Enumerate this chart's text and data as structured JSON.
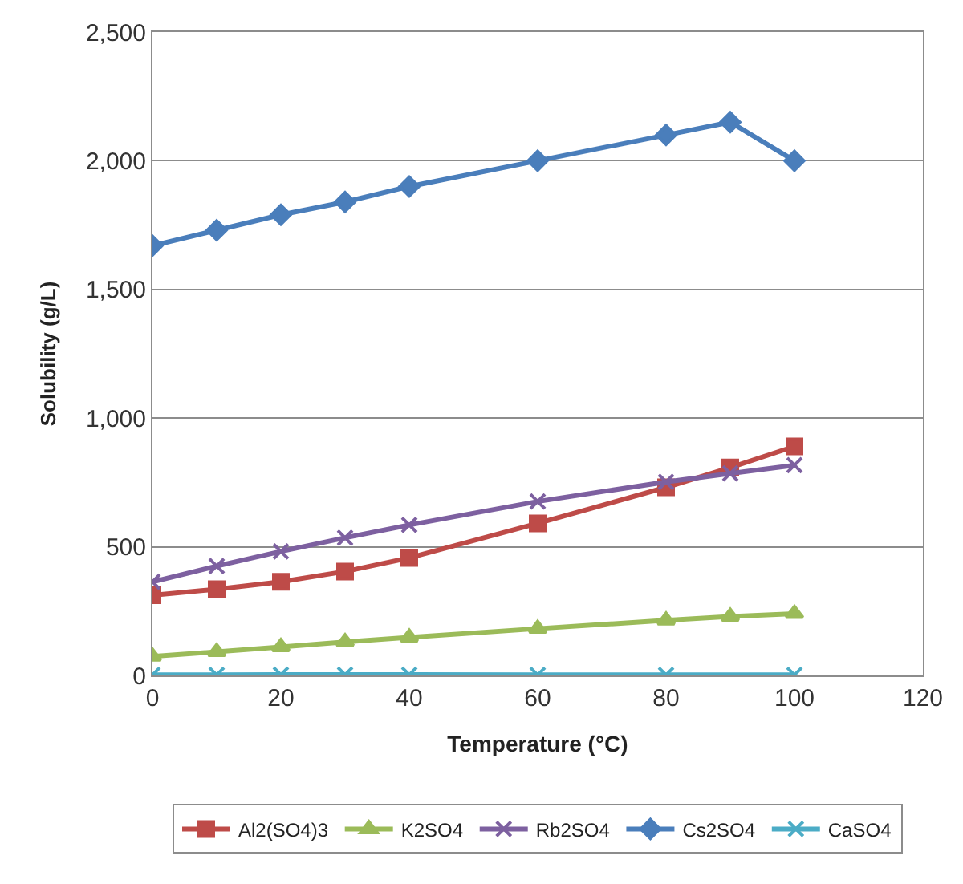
{
  "chart_data": {
    "type": "line",
    "xlabel": "Temperature (°C)",
    "ylabel": "Solubility (g/L)",
    "xlim": [
      0,
      120
    ],
    "xticks": [
      0,
      20,
      40,
      60,
      80,
      100,
      120
    ],
    "ylim": [
      0,
      2500
    ],
    "yticks": [
      {
        "value": 0,
        "label": "0"
      },
      {
        "value": 500,
        "label": "500"
      },
      {
        "value": 1000,
        "label": "1,000"
      },
      {
        "value": 1500,
        "label": "1,500"
      },
      {
        "value": 2000,
        "label": "2,000"
      },
      {
        "value": 2500,
        "label": "2,500"
      }
    ],
    "grid": "y",
    "legend": "bottom",
    "line_style": "solid",
    "series": [
      {
        "name": "Al2(SO4)3",
        "color": "#be4b48",
        "marker": "square",
        "x": [
          0,
          10,
          20,
          30,
          40,
          60,
          80,
          90,
          100
        ],
        "values": [
          312,
          335,
          364,
          404,
          457,
          591,
          731,
          808,
          890
        ]
      },
      {
        "name": "K2SO4",
        "color": "#9bbb59",
        "marker": "triangle",
        "x": [
          0,
          10,
          20,
          30,
          40,
          60,
          80,
          90,
          100
        ],
        "values": [
          74,
          92,
          111,
          130,
          148,
          182,
          214,
          229,
          240
        ]
      },
      {
        "name": "Rb2SO4",
        "color": "#7d60a0",
        "marker": "cross",
        "x": [
          0,
          10,
          20,
          30,
          40,
          60,
          80,
          90,
          100
        ],
        "values": [
          364,
          425,
          482,
          535,
          585,
          676,
          752,
          785,
          817
        ]
      },
      {
        "name": "Cs2SO4",
        "color": "#4a7ebb",
        "marker": "diamond",
        "x": [
          0,
          10,
          20,
          30,
          40,
          60,
          80,
          90,
          100
        ],
        "values": [
          1670,
          1730,
          1790,
          1840,
          1900,
          2000,
          2100,
          2150,
          2000
        ]
      },
      {
        "name": "CaSO4",
        "color": "#4bacc6",
        "marker": "cross",
        "x": [
          0,
          10,
          20,
          30,
          40,
          60,
          80,
          100
        ],
        "values": [
          2,
          2,
          3,
          3,
          3,
          2,
          2,
          2
        ]
      }
    ]
  }
}
